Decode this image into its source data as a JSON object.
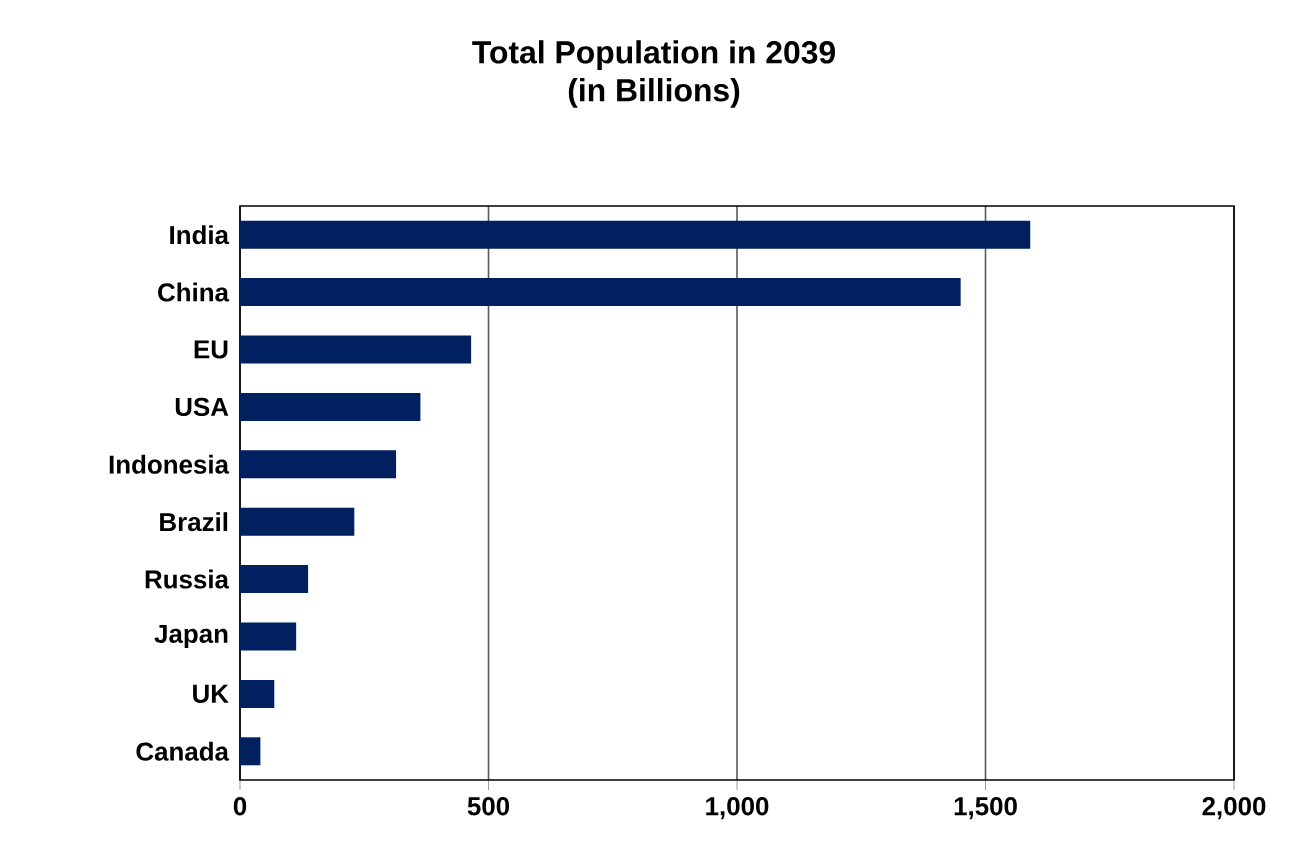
{
  "chart_data": {
    "type": "bar",
    "orientation": "horizontal",
    "title": "Total Population in 2039\n(in Billions)",
    "categories": [
      "India",
      "China",
      "EU",
      "USA",
      "Indonesia",
      "Brazil",
      "Russia",
      "Japan",
      "UK",
      "Canada"
    ],
    "values": [
      1590,
      1450,
      465,
      363,
      314,
      230,
      137,
      113,
      69,
      41
    ],
    "color": "#002060",
    "xlim": [
      0,
      2000
    ],
    "xticks": [
      0,
      500,
      {
        "value": 1000,
        "label": "1,000"
      },
      {
        "value": 1500,
        "label": "1,500"
      },
      {
        "value": 2000,
        "label": "2,000"
      }
    ],
    "grid": "x"
  }
}
